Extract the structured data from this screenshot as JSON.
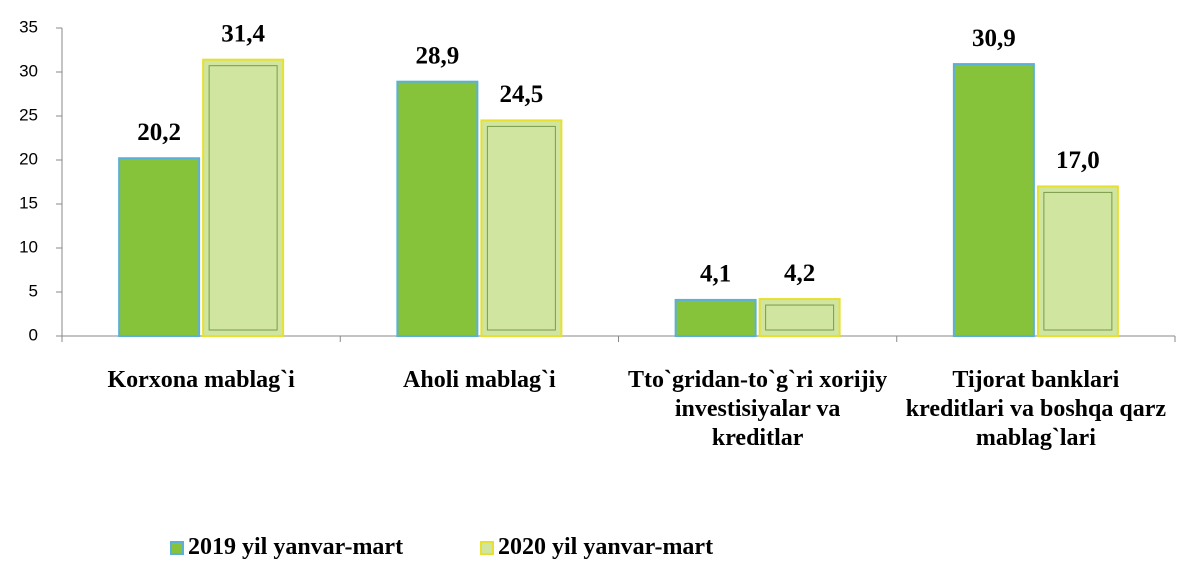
{
  "chart_data": {
    "type": "bar",
    "categories": [
      "Korxona mablag`i",
      "Aholi mablag`i",
      "Tto`gridan-to`g`ri xorijiy investisiyalar va kreditlar",
      "Tijorat banklari kreditlari va boshqa qarz mablag`lari"
    ],
    "series": [
      {
        "name": "2019 yil yanvar-mart",
        "color": "#86c23a",
        "values": [
          20.2,
          28.9,
          4.1,
          30.9
        ],
        "value_labels": [
          "20,2",
          "28,9",
          "4,1",
          "30,9"
        ]
      },
      {
        "name": "2020 yil yanvar-mart",
        "color": "#cfe5a0",
        "values": [
          31.4,
          24.5,
          4.2,
          17.0
        ],
        "value_labels": [
          "31,4",
          "24,5",
          "4,2",
          "17,0"
        ]
      }
    ],
    "ylim": [
      0,
      35
    ],
    "yticks": [
      0,
      5,
      10,
      15,
      20,
      25,
      30,
      35
    ],
    "grid": false,
    "legend": "bottom"
  }
}
